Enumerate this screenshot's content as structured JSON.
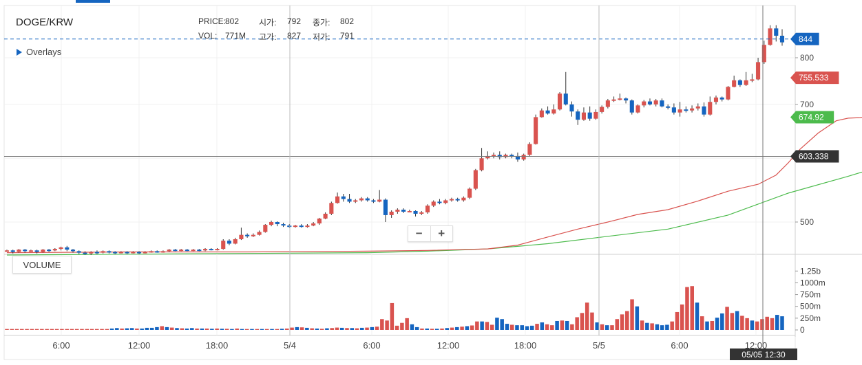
{
  "symbol": "DOGE/KRW",
  "overlays_label": "Overlays",
  "volume_label": "VOLUME",
  "zoom": {
    "minus": "−",
    "plus": "+"
  },
  "ohlc": {
    "price_label": "PRICE:",
    "price": "802",
    "open_label": "시가:",
    "open": "792",
    "close_label": "종가:",
    "close": "802",
    "vol_label": "VOL:",
    "vol": "771M",
    "high_label": "고가:",
    "high": "827",
    "low_label": "저가:",
    "low": "791"
  },
  "crosshair_time": "05/05 12:30",
  "colors": {
    "up": "#d9534f",
    "down": "#1565c0",
    "ma_short": "#d9534f",
    "ma_long": "#4cbb4c",
    "badge_dark": "#333333"
  },
  "chart_data": {
    "type": "candlestick",
    "x_ticks": [
      "6:00",
      "12:00",
      "18:00",
      "5/4",
      "6:00",
      "12:00",
      "18:00",
      "5/5",
      "6:00",
      "12:00"
    ],
    "y_ticks": [
      500,
      700,
      800
    ],
    "ylim": [
      440,
      880
    ],
    "volume_ticks": [
      "0",
      "250m",
      "500m",
      "750m",
      "1000m",
      "1.25b"
    ],
    "volume_ylim": [
      0,
      1400
    ],
    "badges": [
      {
        "label": "844",
        "value": 844,
        "color": "#1565c0"
      },
      {
        "label": "755.533",
        "value": 755.533,
        "color": "#d9534f"
      },
      {
        "label": "674.92",
        "value": 674.92,
        "color": "#4cbb4c"
      },
      {
        "label": "603.338",
        "value": 603.338,
        "color": "#333333"
      }
    ],
    "last_price": 844,
    "crosshair_price": 603.338,
    "candles": [
      [
        460,
        461,
        462,
        459
      ],
      [
        461,
        459,
        462,
        457
      ],
      [
        459,
        462,
        463,
        458
      ],
      [
        462,
        460,
        463,
        458
      ],
      [
        460,
        461,
        462,
        459
      ],
      [
        461,
        459,
        462,
        457
      ],
      [
        459,
        462,
        463,
        458
      ],
      [
        462,
        461,
        463,
        459
      ],
      [
        461,
        463,
        464,
        460
      ],
      [
        463,
        465,
        466,
        461
      ],
      [
        465,
        462,
        467,
        460
      ],
      [
        462,
        460,
        463,
        458
      ],
      [
        460,
        458,
        461,
        456
      ],
      [
        458,
        457,
        460,
        455
      ],
      [
        457,
        459,
        460,
        455
      ],
      [
        459,
        458,
        461,
        456
      ],
      [
        458,
        460,
        461,
        457
      ],
      [
        460,
        459,
        461,
        457
      ],
      [
        459,
        458,
        460,
        456
      ],
      [
        458,
        459,
        460,
        457
      ],
      [
        459,
        458,
        460,
        456
      ],
      [
        458,
        459,
        460,
        457
      ],
      [
        459,
        458,
        460,
        456
      ],
      [
        458,
        459,
        460,
        457
      ],
      [
        459,
        460,
        461,
        458
      ],
      [
        460,
        459,
        461,
        458
      ],
      [
        459,
        460,
        461,
        458
      ],
      [
        460,
        462,
        463,
        459
      ],
      [
        462,
        461,
        463,
        460
      ],
      [
        461,
        462,
        463,
        460
      ],
      [
        462,
        461,
        463,
        460
      ],
      [
        461,
        462,
        463,
        460
      ],
      [
        462,
        461,
        463,
        460
      ],
      [
        461,
        463,
        464,
        460
      ],
      [
        463,
        462,
        464,
        461
      ],
      [
        462,
        463,
        464,
        461
      ],
      [
        463,
        474,
        476,
        462
      ],
      [
        474,
        470,
        476,
        468
      ],
      [
        470,
        476,
        478,
        469
      ],
      [
        476,
        482,
        492,
        475
      ],
      [
        482,
        480,
        484,
        478
      ],
      [
        480,
        482,
        484,
        479
      ],
      [
        482,
        486,
        488,
        481
      ],
      [
        486,
        496,
        497,
        485
      ],
      [
        496,
        500,
        502,
        494
      ],
      [
        500,
        497,
        501,
        494
      ],
      [
        497,
        495,
        499,
        493
      ],
      [
        495,
        493,
        497,
        492
      ],
      [
        493,
        495,
        496,
        492
      ],
      [
        495,
        493,
        497,
        492
      ],
      [
        493,
        495,
        497,
        492
      ],
      [
        495,
        498,
        500,
        494
      ],
      [
        498,
        505,
        506,
        496
      ],
      [
        505,
        512,
        514,
        504
      ],
      [
        512,
        528,
        530,
        510
      ],
      [
        528,
        538,
        544,
        527
      ],
      [
        538,
        534,
        542,
        530
      ],
      [
        534,
        530,
        542,
        528
      ],
      [
        530,
        532,
        534,
        528
      ],
      [
        532,
        535,
        537,
        530
      ],
      [
        535,
        532,
        537,
        530
      ],
      [
        532,
        530,
        534,
        528
      ],
      [
        530,
        533,
        548,
        529
      ],
      [
        533,
        510,
        535,
        500
      ],
      [
        510,
        515,
        517,
        506
      ],
      [
        515,
        518,
        520,
        512
      ],
      [
        518,
        515,
        520,
        513
      ],
      [
        515,
        516,
        518,
        514
      ],
      [
        516,
        512,
        517,
        508
      ],
      [
        512,
        514,
        516,
        510
      ],
      [
        514,
        524,
        526,
        512
      ],
      [
        524,
        530,
        532,
        522
      ],
      [
        530,
        528,
        534,
        526
      ],
      [
        528,
        532,
        534,
        526
      ],
      [
        532,
        534,
        536,
        530
      ],
      [
        534,
        532,
        536,
        530
      ],
      [
        532,
        536,
        538,
        530
      ],
      [
        536,
        550,
        552,
        534
      ],
      [
        550,
        580,
        582,
        548
      ],
      [
        580,
        600,
        618,
        578
      ],
      [
        600,
        604,
        612,
        598
      ],
      [
        604,
        606,
        610,
        600
      ],
      [
        606,
        602,
        612,
        598
      ],
      [
        602,
        606,
        608,
        600
      ],
      [
        606,
        604,
        608,
        600
      ],
      [
        604,
        598,
        610,
        594
      ],
      [
        598,
        606,
        608,
        596
      ],
      [
        606,
        625,
        628,
        604
      ],
      [
        625,
        675,
        680,
        624
      ],
      [
        675,
        688,
        692,
        674
      ],
      [
        688,
        682,
        696,
        680
      ],
      [
        682,
        690,
        700,
        680
      ],
      [
        690,
        722,
        725,
        688
      ],
      [
        722,
        700,
        768,
        698
      ],
      [
        700,
        686,
        706,
        676
      ],
      [
        686,
        670,
        690,
        660
      ],
      [
        670,
        684,
        694,
        668
      ],
      [
        684,
        672,
        696,
        668
      ],
      [
        672,
        685,
        690,
        670
      ],
      [
        685,
        695,
        698,
        682
      ],
      [
        695,
        708,
        711,
        692
      ],
      [
        708,
        710,
        716,
        705
      ],
      [
        710,
        712,
        722,
        708
      ],
      [
        712,
        708,
        714,
        702
      ],
      [
        708,
        684,
        710,
        680
      ],
      [
        684,
        698,
        700,
        682
      ],
      [
        698,
        706,
        709,
        694
      ],
      [
        706,
        700,
        712,
        698
      ],
      [
        700,
        708,
        711,
        696
      ],
      [
        708,
        696,
        712,
        694
      ],
      [
        696,
        694,
        700,
        690
      ],
      [
        694,
        684,
        702,
        680
      ],
      [
        684,
        690,
        705,
        676
      ],
      [
        690,
        688,
        696,
        684
      ],
      [
        688,
        692,
        698,
        684
      ],
      [
        692,
        696,
        702,
        688
      ],
      [
        696,
        680,
        704,
        676
      ],
      [
        680,
        705,
        716,
        678
      ],
      [
        705,
        714,
        718,
        700
      ],
      [
        714,
        710,
        716,
        706
      ],
      [
        710,
        736,
        738,
        708
      ],
      [
        736,
        750,
        760,
        735
      ],
      [
        750,
        740,
        752,
        736
      ],
      [
        740,
        750,
        768,
        738
      ],
      [
        750,
        752,
        764,
        746
      ],
      [
        752,
        790,
        800,
        750
      ],
      [
        790,
        830,
        840,
        786
      ],
      [
        830,
        870,
        878,
        828
      ],
      [
        870,
        852,
        878,
        838
      ],
      [
        852,
        836,
        868,
        828
      ]
    ],
    "ma_short": [
      [
        0,
        458
      ],
      [
        20,
        459
      ],
      [
        40,
        459
      ],
      [
        60,
        460
      ],
      [
        70,
        461
      ],
      [
        80,
        463
      ],
      [
        85,
        468
      ],
      [
        90,
        479
      ],
      [
        95,
        490
      ],
      [
        100,
        500
      ],
      [
        105,
        511
      ],
      [
        110,
        518
      ],
      [
        115,
        531
      ],
      [
        120,
        546
      ],
      [
        125,
        557
      ],
      [
        128,
        572
      ],
      [
        130,
        592
      ],
      [
        132,
        616
      ],
      [
        135,
        645
      ],
      [
        138,
        668
      ],
      [
        140,
        673
      ],
      [
        142,
        674
      ],
      [
        145,
        680
      ],
      [
        148,
        694
      ],
      [
        150,
        701
      ],
      [
        152,
        706
      ],
      [
        154,
        712
      ],
      [
        155,
        720
      ],
      [
        156,
        735
      ],
      [
        157,
        745
      ],
      [
        158,
        756
      ]
    ],
    "ma_long": [
      [
        0,
        455
      ],
      [
        20,
        456
      ],
      [
        40,
        457
      ],
      [
        60,
        458
      ],
      [
        70,
        460
      ],
      [
        80,
        463
      ],
      [
        90,
        470
      ],
      [
        100,
        480
      ],
      [
        110,
        490
      ],
      [
        120,
        510
      ],
      [
        130,
        543
      ],
      [
        140,
        570
      ],
      [
        145,
        585
      ],
      [
        150,
        598
      ],
      [
        155,
        611
      ],
      [
        156,
        628
      ],
      [
        157,
        650
      ],
      [
        158,
        675
      ]
    ],
    "volumes": [
      [
        20,
        0
      ],
      [
        20,
        0
      ],
      [
        20,
        0
      ],
      [
        20,
        0
      ],
      [
        20,
        0
      ],
      [
        20,
        0
      ],
      [
        20,
        0
      ],
      [
        20,
        0
      ],
      [
        20,
        0
      ],
      [
        20,
        0
      ],
      [
        20,
        0
      ],
      [
        20,
        0
      ],
      [
        20,
        0
      ],
      [
        20,
        0
      ],
      [
        20,
        0
      ],
      [
        20,
        0
      ],
      [
        20,
        0
      ],
      [
        20,
        0
      ],
      [
        20,
        0
      ],
      [
        20,
        0
      ],
      [
        20,
        0
      ],
      [
        30,
        1
      ],
      [
        40,
        1
      ],
      [
        30,
        0
      ],
      [
        35,
        1
      ],
      [
        40,
        1
      ],
      [
        30,
        0
      ],
      [
        30,
        1
      ],
      [
        45,
        1
      ],
      [
        45,
        1
      ],
      [
        60,
        1
      ],
      [
        80,
        0
      ],
      [
        60,
        1
      ],
      [
        50,
        0
      ],
      [
        40,
        1
      ],
      [
        35,
        0
      ],
      [
        30,
        1
      ],
      [
        40,
        1
      ],
      [
        30,
        0
      ],
      [
        30,
        1
      ],
      [
        30,
        0
      ],
      [
        25,
        1
      ],
      [
        30,
        0
      ],
      [
        25,
        1
      ],
      [
        25,
        0
      ],
      [
        20,
        1
      ],
      [
        30,
        0
      ],
      [
        20,
        1
      ],
      [
        20,
        0
      ],
      [
        20,
        1
      ],
      [
        20,
        0
      ],
      [
        20,
        1
      ],
      [
        20,
        0
      ],
      [
        20,
        1
      ],
      [
        20,
        0
      ],
      [
        25,
        1
      ],
      [
        30,
        0
      ],
      [
        50,
        0
      ],
      [
        60,
        1
      ],
      [
        55,
        0
      ],
      [
        45,
        1
      ],
      [
        35,
        0
      ],
      [
        30,
        1
      ],
      [
        25,
        0
      ],
      [
        35,
        1
      ],
      [
        40,
        0
      ],
      [
        50,
        0
      ],
      [
        45,
        1
      ],
      [
        40,
        0
      ],
      [
        40,
        1
      ],
      [
        35,
        0
      ],
      [
        45,
        1
      ],
      [
        50,
        0
      ],
      [
        60,
        1
      ],
      [
        70,
        0
      ],
      [
        230,
        0
      ],
      [
        200,
        0
      ],
      [
        570,
        0
      ],
      [
        90,
        0
      ],
      [
        150,
        0
      ],
      [
        250,
        0
      ],
      [
        120,
        1
      ],
      [
        60,
        1
      ],
      [
        30,
        0
      ],
      [
        30,
        1
      ],
      [
        25,
        0
      ],
      [
        25,
        1
      ],
      [
        30,
        0
      ],
      [
        40,
        1
      ],
      [
        50,
        0
      ],
      [
        60,
        1
      ],
      [
        70,
        0
      ],
      [
        80,
        1
      ],
      [
        95,
        0
      ],
      [
        180,
        0
      ],
      [
        180,
        1
      ],
      [
        170,
        0
      ],
      [
        110,
        0
      ],
      [
        260,
        1
      ],
      [
        230,
        1
      ],
      [
        130,
        1
      ],
      [
        110,
        0
      ],
      [
        100,
        1
      ],
      [
        100,
        1
      ],
      [
        80,
        1
      ],
      [
        90,
        1
      ],
      [
        130,
        0
      ],
      [
        160,
        1
      ],
      [
        120,
        0
      ],
      [
        100,
        0
      ],
      [
        190,
        1
      ],
      [
        200,
        0
      ],
      [
        190,
        1
      ],
      [
        120,
        0
      ],
      [
        270,
        0
      ],
      [
        360,
        0
      ],
      [
        580,
        0
      ],
      [
        370,
        0
      ],
      [
        160,
        1
      ],
      [
        120,
        0
      ],
      [
        100,
        1
      ],
      [
        100,
        0
      ],
      [
        230,
        0
      ],
      [
        330,
        0
      ],
      [
        400,
        0
      ],
      [
        650,
        0
      ],
      [
        500,
        1
      ],
      [
        200,
        0
      ],
      [
        150,
        1
      ],
      [
        140,
        0
      ],
      [
        120,
        1
      ],
      [
        100,
        1
      ],
      [
        110,
        1
      ],
      [
        180,
        0
      ],
      [
        380,
        0
      ],
      [
        540,
        0
      ],
      [
        910,
        0
      ],
      [
        930,
        0
      ],
      [
        580,
        1
      ],
      [
        290,
        0
      ],
      [
        180,
        1
      ],
      [
        190,
        0
      ],
      [
        260,
        1
      ],
      [
        350,
        1
      ],
      [
        490,
        0
      ],
      [
        360,
        0
      ],
      [
        400,
        1
      ],
      [
        300,
        0
      ],
      [
        250,
        0
      ],
      [
        200,
        1
      ],
      [
        180,
        0
      ],
      [
        230,
        0
      ],
      [
        280,
        0
      ],
      [
        250,
        0
      ],
      [
        320,
        1
      ],
      [
        290,
        1
      ]
    ]
  }
}
